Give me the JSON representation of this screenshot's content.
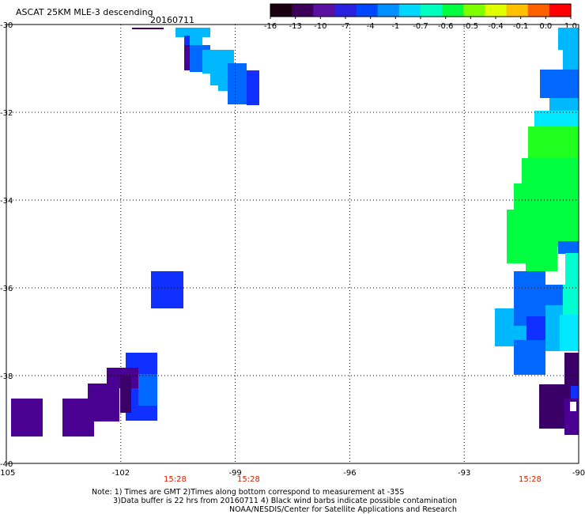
{
  "header": {
    "title": "ASCAT 25KM MLE-3 descending",
    "date": "20160711"
  },
  "colorbar": {
    "labels": [
      "-16",
      "-13",
      "-10",
      "-7",
      "-4",
      "-1",
      "-0.7",
      "-0.6",
      "-0.5",
      "-0.4",
      "-0.1",
      "0.0",
      "1.0"
    ],
    "colors": [
      "#1a0010",
      "#3c0058",
      "#5a10a0",
      "#2a20e0",
      "#0048ff",
      "#0090ff",
      "#00d8ff",
      "#00ffc0",
      "#00ff40",
      "#80ff00",
      "#e0ff00",
      "#ffc000",
      "#ff6000",
      "#ff0000"
    ]
  },
  "map": {
    "lon_range": [
      -105,
      -90
    ],
    "lat_range": [
      -40,
      -30
    ],
    "lon_ticks": [
      "-105",
      "-102",
      "-99",
      "-96",
      "-93",
      "-90"
    ],
    "lat_ticks": [
      "-30",
      "-32",
      "-34",
      "-36",
      "-38",
      "-40"
    ],
    "time_labels": [
      "15:28",
      "15:28",
      "15:28"
    ],
    "cell_colors": {
      "violet": "#4a0090",
      "dark_violet": "#3a0068",
      "blue": "#1030ff",
      "azure": "#0068ff",
      "sky": "#00b8ff",
      "cyan": "#00e8ff",
      "aqua": "#00ffd0",
      "green": "#00ff40",
      "lime": "#20ff20"
    }
  },
  "footer": {
    "note_line1": "Note: 1) Times are GMT 2)Times along bottom correspond to measurement at -35S",
    "note_line2": "3)Data buffer is 22 hrs from 20160711 4) Black wind barbs indicate possible contamination",
    "credit": "NOAA/NESDIS/Center for Satellite Applications and Research"
  }
}
